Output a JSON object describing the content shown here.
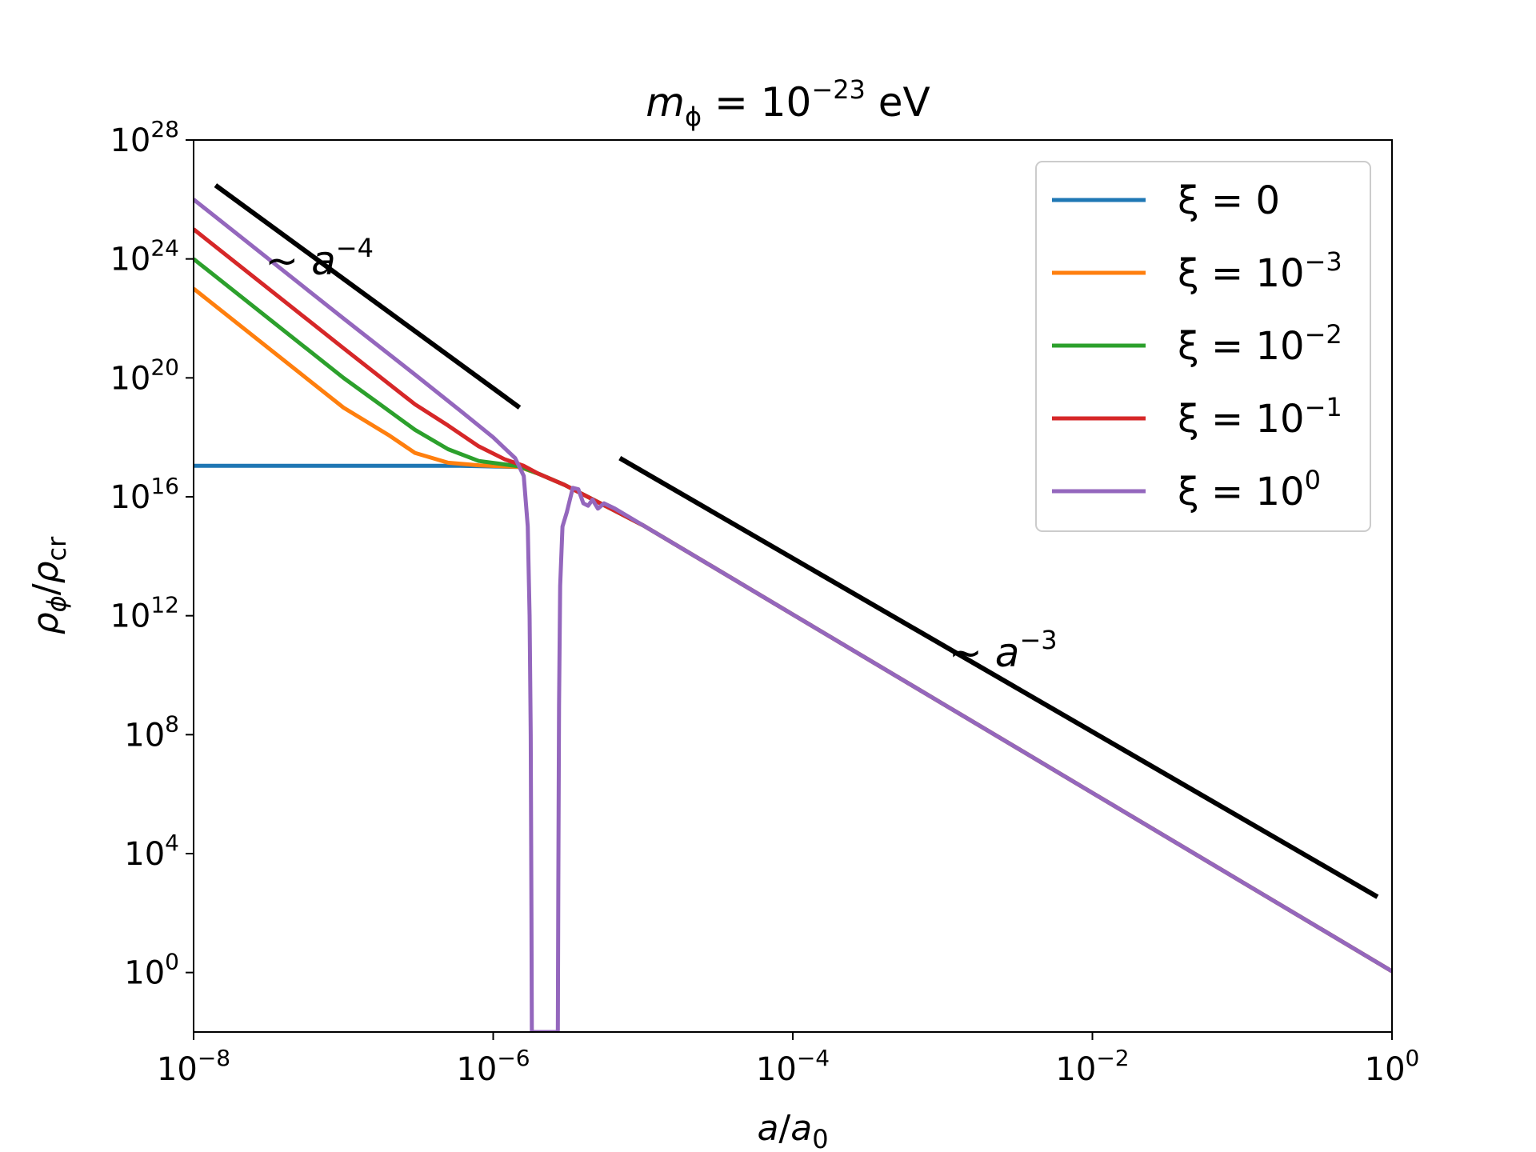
{
  "chart_data": {
    "type": "line",
    "title": "m_ϕ = 10^−23 eV",
    "title_parts": {
      "sym": "m",
      "sub": "ϕ",
      "eq": " = 10",
      "exp": "−23",
      "unit": " eV"
    },
    "xlabel": "a/a₀",
    "xlabel_parts": {
      "a": "a",
      "slash": "/",
      "a0": "a",
      "sub": "0"
    },
    "ylabel": "ρ_ϕ/ρ_cr",
    "ylabel_parts": {
      "rho": "ρ",
      "sub1": "ϕ",
      "slash": "/",
      "rho2": "ρ",
      "sub2": "cr"
    },
    "x_scale": "log",
    "y_scale": "log",
    "xlim": [
      1e-08,
      1
    ],
    "ylim": [
      0.01,
      1e+28
    ],
    "x_ticks": [
      {
        "value": 1e-08,
        "base": "10",
        "exp": "−8"
      },
      {
        "value": 1e-06,
        "base": "10",
        "exp": "−6"
      },
      {
        "value": 0.0001,
        "base": "10",
        "exp": "−4"
      },
      {
        "value": 0.01,
        "base": "10",
        "exp": "−2"
      },
      {
        "value": 1,
        "base": "10",
        "exp": "0"
      }
    ],
    "y_ticks": [
      {
        "value": 1,
        "base": "10",
        "exp": "0"
      },
      {
        "value": 10000.0,
        "base": "10",
        "exp": "4"
      },
      {
        "value": 100000000.0,
        "base": "10",
        "exp": "8"
      },
      {
        "value": 1000000000000.0,
        "base": "10",
        "exp": "12"
      },
      {
        "value": 1e+16,
        "base": "10",
        "exp": "16"
      },
      {
        "value": 1e+20,
        "base": "10",
        "exp": "20"
      },
      {
        "value": 1e+24,
        "base": "10",
        "exp": "24"
      },
      {
        "value": 1e+28,
        "base": "10",
        "exp": "28"
      }
    ],
    "grid": false,
    "legend_position": "top-right",
    "series": [
      {
        "name": "ξ = 0",
        "name_base": "ξ = ",
        "name_exp": "",
        "name_plain": "0",
        "color": "#1f77b4",
        "points": [
          [
            1e-08,
            1.1e+17
          ],
          [
            1e-07,
            1.1e+17
          ],
          [
            6e-07,
            1.1e+17
          ],
          [
            1.5e-06,
            1e+17
          ],
          [
            2e-06,
            6e+16
          ],
          [
            3e-06,
            2.5e+16
          ],
          [
            1e-05,
            1100000000000000.0
          ],
          [
            0.0001,
            1100000000000.0
          ],
          [
            0.001,
            1100000000.0
          ],
          [
            0.01,
            1100000.0
          ],
          [
            0.1,
            1100.0
          ],
          [
            1,
            1.1
          ]
        ]
      },
      {
        "name": "ξ = 10^−3",
        "name_base": "ξ = 10",
        "name_exp": "−3",
        "name_plain": "",
        "color": "#ff7f0e",
        "points": [
          [
            1e-08,
            1e+23
          ],
          [
            1e-07,
            1e+19
          ],
          [
            2e-07,
            1.2e+18
          ],
          [
            3e-07,
            3e+17
          ],
          [
            5e-07,
            1.4e+17
          ],
          [
            8e-07,
            1.15e+17
          ],
          [
            1.5e-06,
            1e+17
          ],
          [
            2e-06,
            6e+16
          ],
          [
            3e-06,
            2.5e+16
          ],
          [
            1e-05,
            1100000000000000.0
          ],
          [
            0.0001,
            1100000000000.0
          ],
          [
            0.001,
            1100000000.0
          ],
          [
            0.01,
            1100000.0
          ],
          [
            0.1,
            1100.0
          ],
          [
            1,
            1.1
          ]
        ]
      },
      {
        "name": "ξ = 10^−2",
        "name_base": "ξ = 10",
        "name_exp": "−2",
        "name_plain": "",
        "color": "#2ca02c",
        "points": [
          [
            1e-08,
            1e+24
          ],
          [
            1e-07,
            1e+20
          ],
          [
            2e-07,
            8e+18
          ],
          [
            3e-07,
            1.8e+18
          ],
          [
            5e-07,
            4e+17
          ],
          [
            8e-07,
            1.6e+17
          ],
          [
            1.5e-06,
            1.05e+17
          ],
          [
            2e-06,
            6e+16
          ],
          [
            3e-06,
            2.5e+16
          ],
          [
            1e-05,
            1100000000000000.0
          ],
          [
            0.0001,
            1100000000000.0
          ],
          [
            0.001,
            1100000000.0
          ],
          [
            0.01,
            1100000.0
          ],
          [
            0.1,
            1100.0
          ],
          [
            1,
            1.1
          ]
        ]
      },
      {
        "name": "ξ = 10^−1",
        "name_base": "ξ = 10",
        "name_exp": "−1",
        "name_plain": "",
        "color": "#d62728",
        "points": [
          [
            1e-08,
            1e+25
          ],
          [
            1e-07,
            1e+21
          ],
          [
            3e-07,
            1.3e+19
          ],
          [
            5e-07,
            2.5e+18
          ],
          [
            8e-07,
            5e+17
          ],
          [
            1.2e-06,
            1.8e+17
          ],
          [
            1.6e-06,
            1.1e+17
          ],
          [
            2e-06,
            6e+16
          ],
          [
            3e-06,
            2.5e+16
          ],
          [
            1e-05,
            1100000000000000.0
          ],
          [
            0.0001,
            1100000000000.0
          ],
          [
            0.001,
            1100000000.0
          ],
          [
            0.01,
            1100000.0
          ],
          [
            0.1,
            1100.0
          ],
          [
            1,
            1.1
          ]
        ]
      },
      {
        "name": "ξ = 10^0",
        "name_base": "ξ = 10",
        "name_exp": "0",
        "name_plain": "",
        "color": "#9467bd",
        "points": [
          [
            1e-08,
            1e+26
          ],
          [
            1e-07,
            1e+22
          ],
          [
            3e-07,
            1.3e+20
          ],
          [
            6e-07,
            8e+18
          ],
          [
            1e-06,
            1e+18
          ],
          [
            1.4e-06,
            2e+17
          ],
          [
            1.6e-06,
            5e+16
          ],
          [
            1.7e-06,
            1000000000000000.0
          ],
          [
            1.75e-06,
            1000000000000.0
          ],
          [
            1.78e-06,
            100000000.0
          ],
          [
            1.8e-06,
            100.0
          ],
          [
            1.81e-06,
            0.01
          ],
          [
            2.7e-06,
            0.01
          ],
          [
            2.72e-06,
            1000.0
          ],
          [
            2.75e-06,
            1000000000.0
          ],
          [
            2.8e-06,
            10000000000000.0
          ],
          [
            2.9e-06,
            1000000000000000.0
          ],
          [
            3.1e-06,
            3000000000000000.0
          ],
          [
            3.4e-06,
            2e+16
          ],
          [
            3.7e-06,
            1.8e+16
          ],
          [
            4e-06,
            6000000000000000.0
          ],
          [
            4.3e-06,
            5000000000000000.0
          ],
          [
            4.6e-06,
            8000000000000000.0
          ],
          [
            5e-06,
            4000000000000000.0
          ],
          [
            5.5e-06,
            6000000000000000.0
          ],
          [
            6.5e-06,
            4000000000000000.0
          ],
          [
            1e-05,
            1100000000000000.0
          ],
          [
            0.0001,
            1100000000000.0
          ],
          [
            0.001,
            1100000000.0
          ],
          [
            0.01,
            1100000.0
          ],
          [
            0.1,
            1100.0
          ],
          [
            1,
            1.1
          ]
        ]
      }
    ],
    "reference_lines": [
      {
        "name": "~ a^−4",
        "label_base": "~ a",
        "label_exp": "−4",
        "color": "#000000",
        "points": [
          [
            1.4e-08,
            3e+26
          ],
          [
            1.5e-06,
            1e+19
          ]
        ],
        "label_at": [
          3e-08,
          3e+23
        ]
      },
      {
        "name": "~ a^−3",
        "label_base": "~ a",
        "label_exp": "−3",
        "color": "#000000",
        "points": [
          [
            7e-06,
            2e+17
          ],
          [
            0.8,
            350.0
          ]
        ],
        "label_at": [
          0.0011,
          20000000000.0
        ]
      }
    ]
  }
}
